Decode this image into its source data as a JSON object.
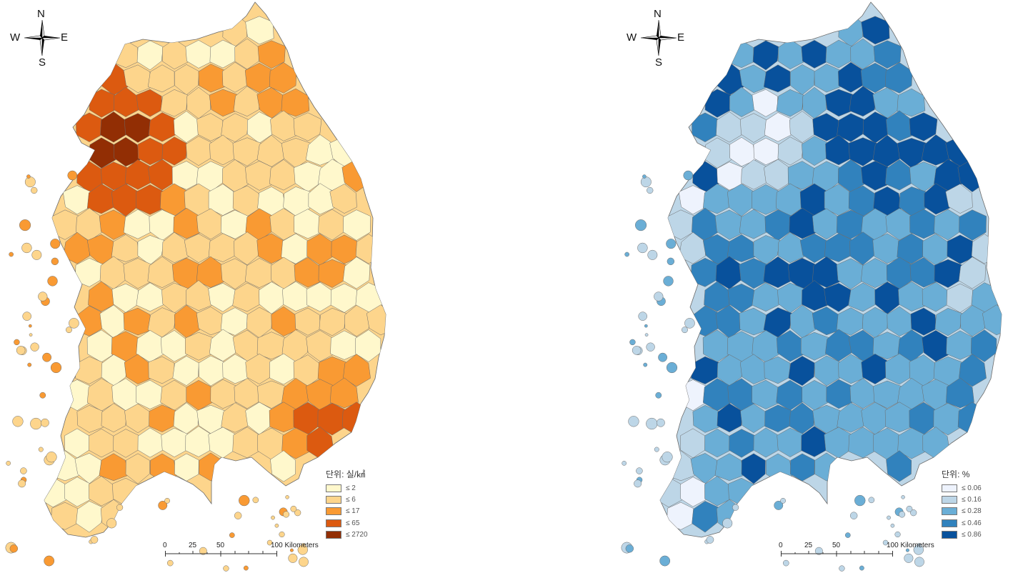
{
  "maps": [
    {
      "id": "left",
      "palette": [
        "#fff8cc",
        "#fdd58c",
        "#f99a33",
        "#dc5a10",
        "#922e04"
      ],
      "border_color": "#6b6b6b",
      "legend": {
        "title": "단위: 실/㎢",
        "items": [
          "≤ 2",
          "≤ 6",
          "≤ 17",
          "≤ 65",
          "≤ 2720"
        ]
      }
    },
    {
      "id": "right",
      "palette": [
        "#eef3fd",
        "#bdd6e7",
        "#6aaed6",
        "#3182bd",
        "#08519c"
      ],
      "border_color": "#6b6b6b",
      "legend": {
        "title": "단위: %",
        "items": [
          "≤ 0.06",
          "≤ 0.16",
          "≤ 0.28",
          "≤ 0.46",
          "≤ 0.86"
        ]
      }
    }
  ],
  "compass": {
    "n": "N",
    "s": "S",
    "w": "W",
    "e": "E"
  },
  "scalebar": {
    "labels": [
      "0",
      "25",
      "50",
      "100 Kilometers"
    ]
  }
}
